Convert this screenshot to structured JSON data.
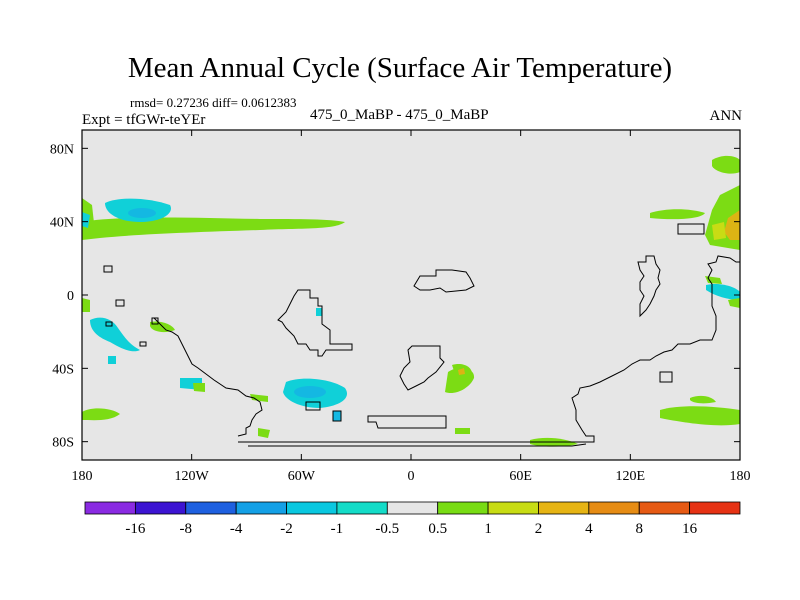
{
  "chart_data": {
    "type": "heatmap",
    "title": "Mean Annual Cycle (Surface Air Temperature)",
    "stats": "rmsd= 0.27236 diff= 0.0612383",
    "experiment": "Expt = tfGWr-teYEr",
    "cases": "475_0_MaBP - 475_0_MaBP",
    "season": "ANN",
    "x_axis": {
      "range": [
        -180,
        180
      ],
      "ticks": [
        {
          "value": -180,
          "label": "180"
        },
        {
          "value": -120,
          "label": "120W"
        },
        {
          "value": -60,
          "label": "60W"
        },
        {
          "value": 0,
          "label": "0"
        },
        {
          "value": 60,
          "label": "60E"
        },
        {
          "value": 120,
          "label": "120E"
        },
        {
          "value": 180,
          "label": "180"
        }
      ]
    },
    "y_axis": {
      "range": [
        -90,
        90
      ],
      "ticks": [
        {
          "value": 80,
          "label": "80N"
        },
        {
          "value": 40,
          "label": "40N"
        },
        {
          "value": 0,
          "label": "0"
        },
        {
          "value": -40,
          "label": "40S"
        },
        {
          "value": -80,
          "label": "80S"
        }
      ]
    },
    "colorbar": {
      "colors": [
        "#8a2be2",
        "#3c14d2",
        "#1e60e0",
        "#14a0e6",
        "#0ac8e0",
        "#14dcc8",
        "#e6e6e6",
        "#78dc14",
        "#c8dc14",
        "#e6b414",
        "#e68c14",
        "#e65a14",
        "#e63214"
      ],
      "labels": [
        "-16",
        "-8",
        "-4",
        "-2",
        "-1",
        "-0.5",
        "0.5",
        "1",
        "2",
        "4",
        "8",
        "16"
      ]
    },
    "anomaly_regions": [
      {
        "name": "north-pacific-band",
        "level": "1",
        "lon": -150,
        "lat": 33
      },
      {
        "name": "north-pacific-cold",
        "level": "-1",
        "lon": -160,
        "lat": 42
      },
      {
        "name": "south-pacific-cold",
        "level": "-1",
        "lon": -165,
        "lat": -20
      },
      {
        "name": "south-atlantic-cold",
        "level": "-1",
        "lon": -55,
        "lat": -50
      },
      {
        "name": "east-asia-warm",
        "level": "4",
        "lon": 175,
        "lat": 35
      },
      {
        "name": "west-pacific-cold",
        "level": "-1",
        "lon": 175,
        "lat": 0
      },
      {
        "name": "southern-ocean-warm",
        "level": "1",
        "lon": 150,
        "lat": -65
      },
      {
        "name": "south-indian-warm",
        "level": "1",
        "lon": 30,
        "lat": -45
      }
    ]
  }
}
